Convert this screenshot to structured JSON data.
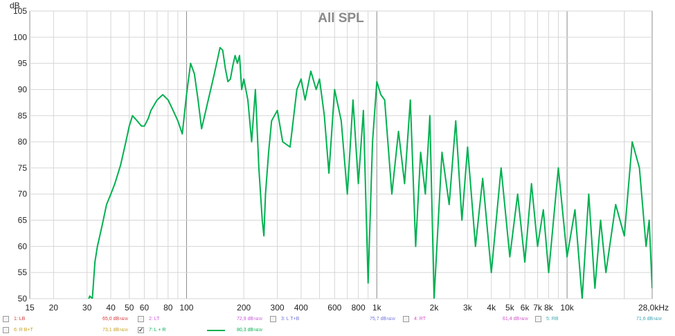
{
  "chart_data": {
    "type": "line",
    "title": "All SPL",
    "ylabel": "dB",
    "xlabel": "",
    "x_scale": "log",
    "xlim": [
      15,
      28000
    ],
    "ylim": [
      50,
      105
    ],
    "x_tick_labels": [
      {
        "x": 15,
        "label": "15"
      },
      {
        "x": 20,
        "label": "20"
      },
      {
        "x": 30,
        "label": "30"
      },
      {
        "x": 40,
        "label": "40"
      },
      {
        "x": 50,
        "label": "50"
      },
      {
        "x": 60,
        "label": "60"
      },
      {
        "x": 80,
        "label": "80"
      },
      {
        "x": 100,
        "label": "100"
      },
      {
        "x": 200,
        "label": "200"
      },
      {
        "x": 300,
        "label": "300"
      },
      {
        "x": 400,
        "label": "400"
      },
      {
        "x": 600,
        "label": "600"
      },
      {
        "x": 800,
        "label": "800"
      },
      {
        "x": 1000,
        "label": "1k"
      },
      {
        "x": 2000,
        "label": "2k"
      },
      {
        "x": 3000,
        "label": "3k"
      },
      {
        "x": 4000,
        "label": "4k"
      },
      {
        "x": 5000,
        "label": "5k"
      },
      {
        "x": 6000,
        "label": "6k"
      },
      {
        "x": 7000,
        "label": "7k"
      },
      {
        "x": 8000,
        "label": "8k"
      },
      {
        "x": 10000,
        "label": "10k"
      },
      {
        "x": 28000,
        "label": "28,0kHz"
      }
    ],
    "y_ticks": [
      50,
      55,
      60,
      65,
      70,
      75,
      80,
      85,
      90,
      95,
      100,
      105
    ],
    "grid": true,
    "series": [
      {
        "name": "7: L + R",
        "color": "#00b050",
        "x": [
          30,
          31,
          32,
          33,
          34,
          36,
          38,
          40,
          42,
          45,
          48,
          50,
          52,
          55,
          58,
          60,
          63,
          65,
          70,
          75,
          80,
          85,
          90,
          95,
          100,
          105,
          110,
          115,
          120,
          130,
          140,
          150,
          155,
          160,
          165,
          170,
          175,
          180,
          185,
          190,
          195,
          200,
          210,
          220,
          230,
          240,
          250,
          255,
          260,
          270,
          280,
          300,
          320,
          350,
          380,
          400,
          420,
          450,
          480,
          500,
          530,
          560,
          600,
          650,
          700,
          750,
          800,
          850,
          900,
          950,
          1000,
          1050,
          1100,
          1200,
          1300,
          1400,
          1500,
          1600,
          1700,
          1800,
          1900,
          2000,
          2200,
          2400,
          2600,
          2800,
          3000,
          3300,
          3600,
          4000,
          4500,
          5000,
          5500,
          6000,
          6500,
          7000,
          7500,
          8000,
          9000,
          10000,
          11000,
          12000,
          13000,
          14000,
          15000,
          16000,
          18000,
          20000,
          22000,
          24000,
          26000,
          27000,
          28000
        ],
        "y": [
          49,
          50.5,
          50,
          57,
          60,
          64,
          68,
          70,
          72,
          75.5,
          80,
          83,
          85,
          84,
          83,
          83,
          84.5,
          86,
          88,
          89,
          88,
          86,
          84,
          81.5,
          89,
          95,
          93,
          88,
          82.5,
          88,
          93,
          98,
          97.5,
          94,
          91.5,
          92,
          94.5,
          96.5,
          95,
          96.5,
          90,
          92,
          88,
          80,
          90,
          75,
          65,
          62,
          70,
          78,
          84,
          86,
          80,
          79,
          90,
          92,
          88,
          93.5,
          90,
          92,
          85,
          74,
          90,
          84,
          70,
          88,
          72,
          86,
          53,
          80,
          91.5,
          89,
          88,
          70,
          82,
          72,
          88,
          60,
          78,
          70,
          85,
          50,
          78,
          68,
          84,
          65,
          79,
          60,
          73,
          55,
          75,
          58,
          70,
          57,
          72,
          60,
          67,
          55,
          75,
          58,
          67,
          50,
          70,
          52,
          65,
          55,
          68,
          62,
          80,
          75,
          60,
          65,
          52
        ]
      }
    ],
    "legend": [
      {
        "label": "1: LB",
        "value": "65,0 dB",
        "color": "#d43a3a",
        "checked": false
      },
      {
        "label": "2: LT",
        "value": "72,9 dB",
        "color": "#c655d8",
        "checked": false
      },
      {
        "label": "3: L T+B",
        "value": "75,7 dB",
        "color": "#6f73d8",
        "checked": false
      },
      {
        "label": "4: RT",
        "value": "61,4 dB",
        "color": "#d450c8",
        "checked": false
      },
      {
        "label": "5: RB",
        "value": "71,6 dB",
        "color": "#3ba4b0",
        "checked": false
      },
      {
        "label": "6: R B+T",
        "value": "73,1 dB",
        "color": "#c8a020",
        "checked": false
      },
      {
        "label": "7: L + R",
        "value": "80,3 dB",
        "color": "#00b050",
        "checked": true
      }
    ],
    "new_tag": "NEW",
    "check_mark": "✓"
  }
}
